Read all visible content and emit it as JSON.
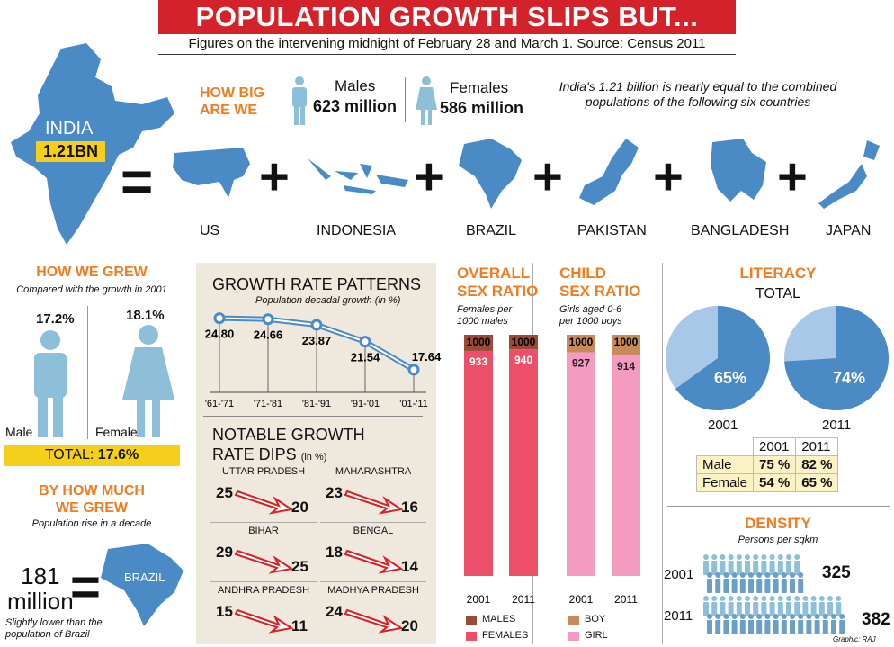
{
  "header": {
    "title": "POPULATION GROWTH SLIPS BUT...",
    "subtitle": "Figures on the intervening midnight of February 28 and March 1. Source: Census 2011"
  },
  "india": {
    "label": "INDIA",
    "value": "1.21BN"
  },
  "how_big": {
    "heading_line1": "HOW BIG",
    "heading_line2": "ARE WE",
    "males_label": "Males",
    "males_value": "623 million",
    "females_label": "Females",
    "females_value": "586 million",
    "note_line1": "India's 1.21 billion is nearly equal to the combined",
    "note_line2": "populations of the following six countries"
  },
  "countries": [
    "US",
    "INDONESIA",
    "BRAZIL",
    "PAKISTAN",
    "BANGLADESH",
    "JAPAN"
  ],
  "how_we_grew": {
    "heading": "HOW WE GREW",
    "sub": "Compared with the growth in 2001",
    "male_pct": "17.2%",
    "female_pct": "18.1%",
    "male_label": "Male",
    "female_label": "Female",
    "total_label": "TOTAL:",
    "total_value": "17.6%"
  },
  "by_how_much": {
    "heading_line1": "BY HOW MUCH",
    "heading_line2": "WE GREW",
    "sub": "Population rise in a decade",
    "value_line1": "181",
    "value_line2": "million",
    "map_label": "BRAZIL",
    "note_line1": "Slightly lower than the",
    "note_line2": "population of Brazil"
  },
  "growth": {
    "title": "GROWTH RATE PATTERNS",
    "sub": "Population decadal growth (in %)"
  },
  "chart_data": [
    {
      "type": "line",
      "title": "GROWTH RATE PATTERNS",
      "subtitle": "Population decadal growth (in %)",
      "categories": [
        "'61-'71",
        "'71-'81",
        "'81-'91",
        "'91-'01",
        "'01-'11"
      ],
      "values": [
        24.8,
        24.66,
        23.87,
        21.54,
        17.64
      ],
      "value_labels": [
        "24.80",
        "24.66",
        "23.87",
        "21.54",
        "17.64"
      ]
    },
    {
      "type": "bar",
      "title": "OVERALL SEX RATIO",
      "subtitle": "Females per 1000 males",
      "categories": [
        "2001",
        "2011"
      ],
      "series": [
        {
          "name": "MALES",
          "values": [
            1000,
            1000
          ]
        },
        {
          "name": "FEMALES",
          "values": [
            933,
            940
          ]
        }
      ]
    },
    {
      "type": "bar",
      "title": "CHILD SEX RATIO",
      "subtitle": "Girls aged 0-6 per 1000 boys",
      "categories": [
        "2001",
        "2011"
      ],
      "series": [
        {
          "name": "BOY",
          "values": [
            1000,
            1000
          ]
        },
        {
          "name": "GIRL",
          "values": [
            927,
            914
          ]
        }
      ]
    },
    {
      "type": "pie",
      "title": "LITERACY",
      "subtitle": "TOTAL",
      "categories": [
        "2001",
        "2011"
      ],
      "values": [
        65,
        74
      ]
    }
  ],
  "dips": {
    "title_line1": "NOTABLE GROWTH",
    "title_line2": "RATE DIPS",
    "unit": "(in %)",
    "states": [
      {
        "name": "UTTAR PRADESH",
        "from": "25",
        "to": "20"
      },
      {
        "name": "MAHARASHTRA",
        "from": "23",
        "to": "16"
      },
      {
        "name": "BIHAR",
        "from": "29",
        "to": "25"
      },
      {
        "name": "BENGAL",
        "from": "18",
        "to": "14"
      },
      {
        "name": "ANDHRA PRADESH",
        "from": "15",
        "to": "11"
      },
      {
        "name": "MADHYA PRADESH",
        "from": "24",
        "to": "20"
      }
    ]
  },
  "overall": {
    "line1": "OVERALL",
    "line2": "SEX RATIO",
    "sub1": "Females per",
    "sub2": "1000 males",
    "top": "1000",
    "v2001": "933",
    "v2011": "940",
    "y2001": "2001",
    "y2011": "2011",
    "legend_male": "MALES",
    "legend_female": "FEMALES",
    "c_male": "#9c4a38",
    "c_female": "#ec5068"
  },
  "child": {
    "line1": "CHILD",
    "line2": "SEX RATIO",
    "sub1": "Girls aged 0-6",
    "sub2": "per 1000 boys",
    "top": "1000",
    "v2001": "927",
    "v2011": "914",
    "y2001": "2001",
    "y2011": "2011",
    "legend_boy": "BOY",
    "legend_girl": "GIRL",
    "c_boy": "#c98a5a",
    "c_girl": "#f59ac1"
  },
  "literacy": {
    "heading": "LITERACY",
    "total": "TOTAL",
    "p2001": "65%",
    "p2011": "74%",
    "y2001": "2001",
    "y2011": "2011",
    "table": {
      "h1": "2001",
      "h2": "2011",
      "rows": [
        {
          "label": "Male",
          "a": "75 %",
          "b": "82 %"
        },
        {
          "label": "Female",
          "a": "54 %",
          "b": "65 %"
        }
      ]
    }
  },
  "density": {
    "heading": "DENSITY",
    "sub": "Persons per sqkm",
    "y2001": "2001",
    "v2001": "325",
    "y2011": "2011",
    "v2011": "382"
  },
  "credit": "Graphic: RAJ"
}
